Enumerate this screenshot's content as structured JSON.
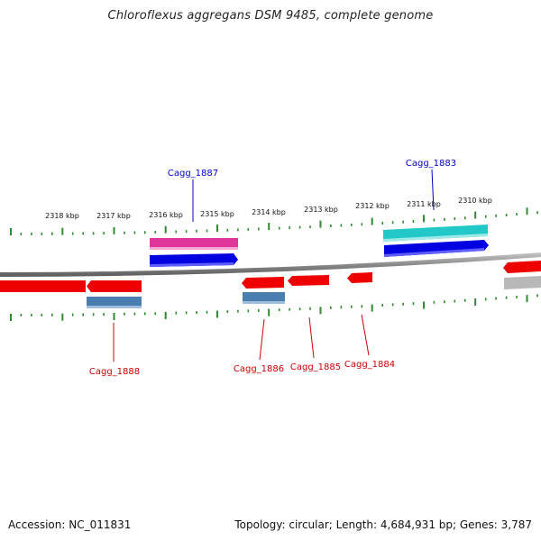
{
  "title": "Chloroflexus aggregans DSM 9485, complete genome",
  "accession": "Accession: NC_011831",
  "topology": "Topology: circular; Length: 4,684,931 bp; Genes: 3,787",
  "colors": {
    "backbone": "#8a8a8a",
    "tick": "#2e8b2e",
    "label_forward": "#0000cc",
    "label_reverse": "#cc0000"
  },
  "kbp_labels": [
    "2318 kbp",
    "2317 kbp",
    "2316 kbp",
    "2315 kbp",
    "2314 kbp",
    "2313 kbp",
    "2312 kbp",
    "2311 kbp",
    "2310 kbp"
  ],
  "genes": [
    {
      "name": "Cagg_1887",
      "strand": "forward",
      "color": "#0000e0",
      "labeled": true
    },
    {
      "name": "Cagg_1883",
      "strand": "forward",
      "color": "#0000e0",
      "labeled": true
    },
    {
      "name": "Cagg_1888",
      "strand": "reverse",
      "color": "#ee0000",
      "labeled": true
    },
    {
      "name": "Cagg_1886",
      "strand": "reverse",
      "color": "#ee0000",
      "labeled": true
    },
    {
      "name": "Cagg_1885",
      "strand": "reverse",
      "color": "#ee0000",
      "labeled": true
    },
    {
      "name": "Cagg_1884",
      "strand": "reverse",
      "color": "#ee0000",
      "labeled": true
    }
  ],
  "features": [
    {
      "name": "pink-feature-bar",
      "color": "#e0359a"
    },
    {
      "name": "cyan-feature-bar",
      "color": "#22c8c8"
    },
    {
      "name": "steelblue-feature-bar-1",
      "color": "#4a7eb0"
    },
    {
      "name": "steelblue-feature-bar-2",
      "color": "#4a7eb0"
    },
    {
      "name": "gray-feature-bar",
      "color": "#b8b8b8"
    }
  ]
}
